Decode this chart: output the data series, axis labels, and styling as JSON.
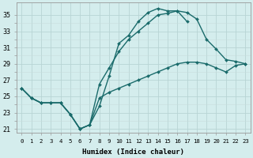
{
  "title": "",
  "xlabel": "Humidex (Indice chaleur)",
  "ylabel": "",
  "background_color": "#d4eded",
  "grid_color": "#c0d8d8",
  "line_color": "#1a6b6b",
  "xlim": [
    -0.5,
    23.5
  ],
  "ylim": [
    20.5,
    36.5
  ],
  "yticks": [
    21,
    23,
    25,
    27,
    29,
    31,
    33,
    35
  ],
  "xticks": [
    0,
    1,
    2,
    3,
    4,
    5,
    6,
    7,
    8,
    9,
    10,
    11,
    12,
    13,
    14,
    15,
    16,
    17,
    18,
    19,
    20,
    21,
    22,
    23
  ],
  "line1_y": [
    26.0,
    24.8,
    24.2,
    24.2,
    24.2,
    22.8,
    21.0,
    21.5,
    23.8,
    27.5,
    31.5,
    32.5,
    34.2,
    35.3,
    35.8,
    35.5,
    35.5,
    34.2,
    null,
    null,
    null,
    null,
    null,
    null
  ],
  "line2_y": [
    26.0,
    24.8,
    24.2,
    24.2,
    24.2,
    22.8,
    21.0,
    21.5,
    26.5,
    28.5,
    30.5,
    32.0,
    33.0,
    34.0,
    35.0,
    35.2,
    35.5,
    35.3,
    34.5,
    32.0,
    30.8,
    29.5,
    29.3,
    29.0
  ],
  "line3_y": [
    26.0,
    24.8,
    24.2,
    24.2,
    24.2,
    22.8,
    21.0,
    21.5,
    24.8,
    25.5,
    26.0,
    26.5,
    27.0,
    27.5,
    28.0,
    28.5,
    29.0,
    29.2,
    29.2,
    29.0,
    28.5,
    28.0,
    28.8,
    29.0
  ],
  "marker": "D",
  "markersize": 2.0,
  "linewidth": 1.0
}
